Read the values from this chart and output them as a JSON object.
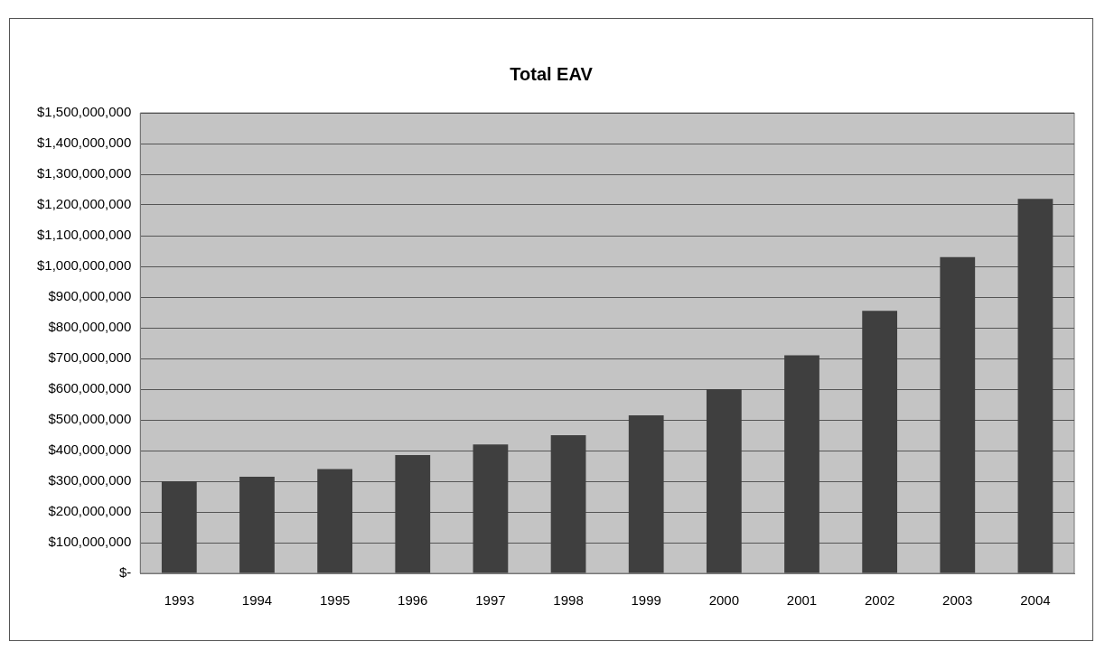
{
  "chart_data": {
    "type": "bar",
    "title": "Total EAV",
    "categories": [
      "1993",
      "1994",
      "1995",
      "1996",
      "1997",
      "1998",
      "1999",
      "2000",
      "2001",
      "2002",
      "2003",
      "2004"
    ],
    "values": [
      300000000,
      315000000,
      340000000,
      385000000,
      420000000,
      450000000,
      515000000,
      600000000,
      710000000,
      855000000,
      1030000000,
      1220000000
    ],
    "color": "#3f3f3f",
    "ylim": [
      0,
      1500000000
    ],
    "yticks": [
      {
        "value": 0,
        "label": "$-"
      },
      {
        "value": 100000000,
        "label": "$100,000,000"
      },
      {
        "value": 200000000,
        "label": "$200,000,000"
      },
      {
        "value": 300000000,
        "label": "$300,000,000"
      },
      {
        "value": 400000000,
        "label": "$400,000,000"
      },
      {
        "value": 500000000,
        "label": "$500,000,000"
      },
      {
        "value": 600000000,
        "label": "$600,000,000"
      },
      {
        "value": 700000000,
        "label": "$700,000,000"
      },
      {
        "value": 800000000,
        "label": "$800,000,000"
      },
      {
        "value": 900000000,
        "label": "$900,000,000"
      },
      {
        "value": 1000000000,
        "label": "$1,000,000,000"
      },
      {
        "value": 1100000000,
        "label": "$1,100,000,000"
      },
      {
        "value": 1200000000,
        "label": "$1,200,000,000"
      },
      {
        "value": 1300000000,
        "label": "$1,300,000,000"
      },
      {
        "value": 1400000000,
        "label": "$1,400,000,000"
      },
      {
        "value": 1500000000,
        "label": "$1,500,000,000"
      }
    ],
    "grid": "y"
  }
}
